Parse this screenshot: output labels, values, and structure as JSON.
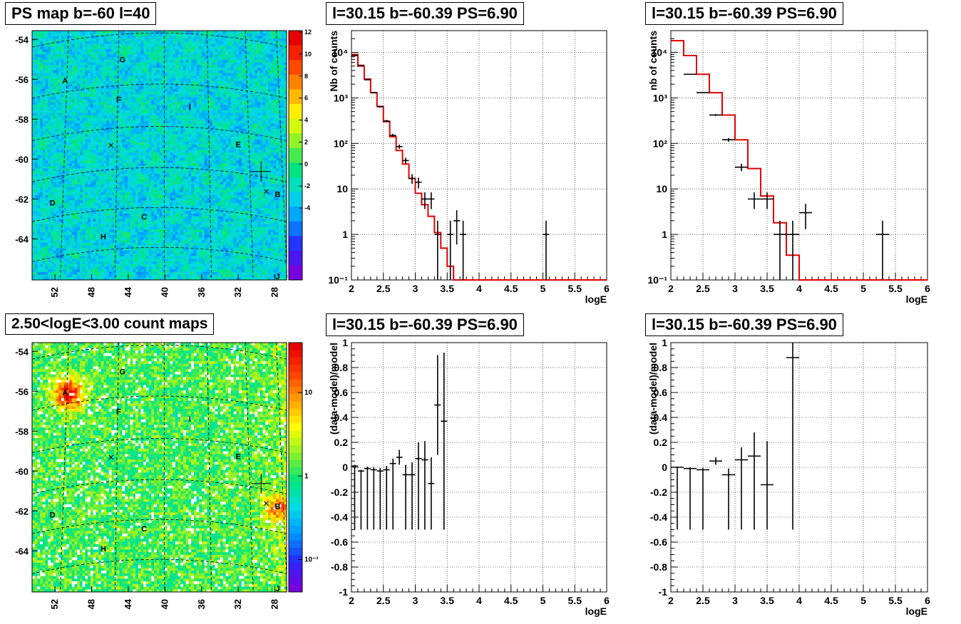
{
  "panels": [
    {
      "id": "ps-map",
      "title": "PS map b=-60 l=40",
      "type": "heatmap",
      "yticks": [
        "-54",
        "-56",
        "-58",
        "-60",
        "-62",
        "-64"
      ],
      "xticks": [
        "52",
        "48",
        "44",
        "40",
        "36",
        "32",
        "28"
      ],
      "colorbar_ticks": [
        "12",
        "10",
        "8",
        "6",
        "4",
        "2",
        "0",
        "-2",
        "-4"
      ],
      "colorbar_scale": "linear",
      "source_labels": [
        "A",
        "B",
        "C",
        "D",
        "E",
        "F",
        "G",
        "H",
        "I",
        "J"
      ]
    },
    {
      "id": "count-map",
      "title": "2.50<logE<3.00 count maps",
      "type": "heatmap",
      "yticks": [
        "-54",
        "-56",
        "-58",
        "-60",
        "-62",
        "-64"
      ],
      "xticks": [
        "52",
        "48",
        "44",
        "40",
        "36",
        "32",
        "28"
      ],
      "colorbar_ticks": [
        "10",
        "1",
        "10⁻¹"
      ],
      "colorbar_scale": "log",
      "source_labels": [
        "A",
        "B",
        "C",
        "D",
        "E",
        "F",
        "G",
        "H",
        "I",
        "J"
      ]
    }
  ],
  "chart_data": [
    {
      "id": "spectrum-fine",
      "title": "l=30.15 b=-60.39 PS=6.90",
      "type": "line",
      "xlabel": "logE",
      "ylabel": "Nb of counts",
      "xlim": [
        2,
        6
      ],
      "ylim": [
        0.1,
        30000
      ],
      "yscale": "log",
      "grid": true,
      "xticks": [
        "2",
        "2.5",
        "3",
        "3.5",
        "4",
        "4.5",
        "5",
        "5.5",
        "6"
      ],
      "yticks": [
        {
          "v": 0.1,
          "label": "10⁻¹"
        },
        {
          "v": 1,
          "label": "1"
        },
        {
          "v": 10,
          "label": "10"
        },
        {
          "v": 100,
          "label": "10²"
        },
        {
          "v": 1000,
          "label": "10³"
        },
        {
          "v": 10000,
          "label": "10⁴"
        }
      ],
      "binwidth": 0.1,
      "model_color": "#e00000",
      "model": [
        9000,
        5000,
        2600,
        1300,
        650,
        300,
        140,
        70,
        35,
        17,
        8,
        4.5,
        2.5,
        1.1,
        0.5,
        0.2,
        0.1
      ],
      "data": [
        {
          "x": 2.05,
          "y": 8500,
          "e": 92
        },
        {
          "x": 2.15,
          "y": 5200,
          "e": 72
        },
        {
          "x": 2.25,
          "y": 2500,
          "e": 50
        },
        {
          "x": 2.35,
          "y": 1300,
          "e": 36
        },
        {
          "x": 2.45,
          "y": 640,
          "e": 25
        },
        {
          "x": 2.55,
          "y": 310,
          "e": 18
        },
        {
          "x": 2.65,
          "y": 150,
          "e": 12
        },
        {
          "x": 2.75,
          "y": 85,
          "e": 9
        },
        {
          "x": 2.85,
          "y": 42,
          "e": 6.5
        },
        {
          "x": 2.95,
          "y": 17,
          "e": 4.1
        },
        {
          "x": 3.05,
          "y": 14,
          "e": 3.7
        },
        {
          "x": 3.15,
          "y": 6,
          "e": 2.4
        },
        {
          "x": 3.25,
          "y": 6,
          "e": 2.4
        },
        {
          "x": 3.35,
          "y": 1,
          "e": 1
        },
        {
          "x": 3.55,
          "y": 1,
          "e": 1
        },
        {
          "x": 3.65,
          "y": 2,
          "e": 1.4
        },
        {
          "x": 3.75,
          "y": 1,
          "e": 1
        },
        {
          "x": 5.05,
          "y": 1,
          "e": 1
        }
      ]
    },
    {
      "id": "spectrum-coarse",
      "title": "l=30.15 b=-60.39 PS=6.90",
      "type": "line",
      "xlabel": "logE",
      "ylabel": "nb of counts",
      "xlim": [
        2,
        6
      ],
      "ylim": [
        0.1,
        30000
      ],
      "yscale": "log",
      "grid": true,
      "xticks": [
        "2",
        "2.5",
        "3",
        "3.5",
        "4",
        "4.5",
        "5",
        "5.5",
        "6"
      ],
      "yticks": [
        {
          "v": 0.1,
          "label": "10⁻¹"
        },
        {
          "v": 1,
          "label": "1"
        },
        {
          "v": 10,
          "label": "10"
        },
        {
          "v": 100,
          "label": "10²"
        },
        {
          "v": 1000,
          "label": "10³"
        },
        {
          "v": 10000,
          "label": "10⁴"
        }
      ],
      "binwidth": 0.2,
      "model_color": "#e00000",
      "model": [
        18000,
        8500,
        3300,
        1300,
        420,
        120,
        28,
        7,
        1.8,
        0.35,
        0.1
      ],
      "data": [
        {
          "x": 2.3,
          "y": 3300,
          "e": 57
        },
        {
          "x": 2.5,
          "y": 1300,
          "e": 36
        },
        {
          "x": 2.7,
          "y": 420,
          "e": 20
        },
        {
          "x": 2.9,
          "y": 120,
          "e": 11
        },
        {
          "x": 3.1,
          "y": 30,
          "e": 5.5
        },
        {
          "x": 3.3,
          "y": 6,
          "e": 2.4
        },
        {
          "x": 3.5,
          "y": 6,
          "e": 2.4
        },
        {
          "x": 3.7,
          "y": 1,
          "e": 1
        },
        {
          "x": 3.9,
          "y": 1,
          "e": 1
        },
        {
          "x": 4.1,
          "y": 3,
          "e": 1.7
        },
        {
          "x": 5.3,
          "y": 1,
          "e": 1
        }
      ]
    },
    {
      "id": "residual-fine",
      "title": "l=30.15 b=-60.39 PS=6.90",
      "type": "scatter",
      "xlabel": "logE",
      "ylabel": "(data-model)/model",
      "xlim": [
        2,
        6
      ],
      "ylim": [
        -1,
        1
      ],
      "grid": true,
      "xticks": [
        "2",
        "2.5",
        "3",
        "3.5",
        "4",
        "4.5",
        "5",
        "5.5",
        "6"
      ],
      "yticks": [
        "1",
        "0.8",
        "0.6",
        "0.4",
        "0.2",
        "0",
        "-0.2",
        "-0.4",
        "-0.6",
        "-0.8",
        "-1"
      ],
      "binwidth": 0.1,
      "data": [
        {
          "x": 2.05,
          "y": 0.01,
          "e": 0.01
        },
        {
          "x": 2.15,
          "y": -0.03,
          "e": 0.01
        },
        {
          "x": 2.25,
          "y": -0.01,
          "e": 0.015
        },
        {
          "x": 2.35,
          "y": -0.02,
          "e": 0.02
        },
        {
          "x": 2.45,
          "y": -0.03,
          "e": 0.025
        },
        {
          "x": 2.55,
          "y": -0.02,
          "e": 0.03
        },
        {
          "x": 2.65,
          "y": 0.03,
          "e": 0.04
        },
        {
          "x": 2.75,
          "y": 0.08,
          "e": 0.06
        },
        {
          "x": 2.85,
          "y": -0.06,
          "e": 0.08
        },
        {
          "x": 2.95,
          "y": -0.06,
          "e": 0.1
        },
        {
          "x": 3.05,
          "y": 0.07,
          "e": 0.13
        },
        {
          "x": 3.15,
          "y": 0.06,
          "e": 0.15
        },
        {
          "x": 3.25,
          "y": -0.13,
          "e": 0.21
        },
        {
          "x": 3.35,
          "y": 0.5,
          "e": 0.4
        },
        {
          "x": 3.45,
          "y": 0.37,
          "e": 0.55
        }
      ]
    },
    {
      "id": "residual-coarse",
      "title": "l=30.15 b=-60.39 PS=6.90",
      "type": "scatter",
      "xlabel": "logE",
      "ylabel": "(data-model)/model",
      "xlim": [
        2,
        6
      ],
      "ylim": [
        -1,
        1
      ],
      "grid": true,
      "xticks": [
        "2",
        "2.5",
        "3",
        "3.5",
        "4",
        "4.5",
        "5",
        "5.5",
        "6"
      ],
      "yticks": [
        "1",
        "0.8",
        "0.6",
        "0.4",
        "0.2",
        "0",
        "-0.2",
        "-0.4",
        "-0.6",
        "-0.8",
        "-1"
      ],
      "binwidth": 0.2,
      "data": [
        {
          "x": 2.1,
          "y": 0.0,
          "e": 0.005
        },
        {
          "x": 2.3,
          "y": -0.01,
          "e": 0.01
        },
        {
          "x": 2.5,
          "y": -0.02,
          "e": 0.015
        },
        {
          "x": 2.7,
          "y": 0.05,
          "e": 0.03
        },
        {
          "x": 2.9,
          "y": -0.06,
          "e": 0.05
        },
        {
          "x": 3.1,
          "y": 0.06,
          "e": 0.1
        },
        {
          "x": 3.3,
          "y": 0.09,
          "e": 0.19
        },
        {
          "x": 3.5,
          "y": -0.14,
          "e": 0.35
        },
        {
          "x": 3.9,
          "y": 0.88,
          "e": 1.2
        }
      ]
    }
  ]
}
